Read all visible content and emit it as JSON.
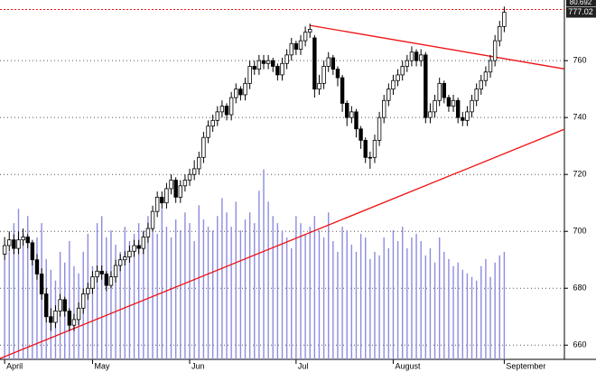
{
  "chart_data": {
    "type": "candlestick",
    "ylim": [
      655,
      781
    ],
    "yticks": [
      660,
      680,
      700,
      720,
      740,
      760
    ],
    "xlim": [
      -1,
      121
    ],
    "month_ticks": [
      {
        "value": 0,
        "label": "April"
      },
      {
        "value": 19,
        "label": "May"
      },
      {
        "value": 40,
        "label": "Jun"
      },
      {
        "value": 63,
        "label": "Jul"
      },
      {
        "value": 84,
        "label": "August"
      },
      {
        "value": 108,
        "label": "September"
      }
    ],
    "grid": true,
    "up_color": "#ffffff",
    "down_color": "#000000",
    "volume_color": "#8c8ce0",
    "trend_color": "#ee1111",
    "last_price": {
      "value": 777.02,
      "label": "777.02"
    },
    "top_label": "80.692",
    "ref_line": 778,
    "volume_lim": [
      0,
      100
    ],
    "trendlines": [
      {
        "x": [
          -1,
          121
        ],
        "values": [
          655.3,
          735.9
        ]
      },
      {
        "x": [
          66,
          121
        ],
        "values": [
          772.4,
          757.1
        ]
      }
    ],
    "open": [
      692,
      695,
      697,
      694,
      697,
      698,
      696,
      690,
      685,
      678,
      670,
      668,
      672,
      676,
      672,
      667,
      669,
      673,
      678,
      680,
      684,
      686,
      685,
      681,
      684,
      688,
      690,
      691,
      693,
      695,
      694,
      698,
      701,
      707,
      712,
      710,
      715,
      718,
      712,
      716,
      718,
      720,
      722,
      726,
      733,
      737,
      739,
      742,
      744,
      741,
      747,
      750,
      748,
      752,
      758,
      757,
      760,
      759,
      760,
      758,
      755,
      759,
      762,
      766,
      764,
      767,
      770,
      768,
      750,
      752,
      758,
      761,
      757,
      754,
      745,
      740,
      742,
      736,
      732,
      726,
      726,
      732,
      740,
      746,
      750,
      753,
      755,
      758,
      760,
      763,
      760,
      762,
      740,
      742,
      746,
      752,
      747,
      744,
      746,
      740,
      739,
      742,
      746,
      750,
      753,
      756,
      760,
      767,
      772
    ],
    "high": [
      698,
      700,
      699,
      700,
      701,
      699,
      697,
      692,
      687,
      680,
      673,
      674,
      678,
      677,
      673,
      671,
      675,
      680,
      682,
      686,
      688,
      688,
      686,
      686,
      690,
      692,
      693,
      695,
      697,
      697,
      700,
      703,
      709,
      714,
      714,
      717,
      720,
      719,
      718,
      720,
      722,
      725,
      728,
      735,
      739,
      741,
      744,
      746,
      745,
      749,
      752,
      751,
      754,
      760,
      760,
      762,
      762,
      762,
      761,
      759,
      761,
      764,
      768,
      767,
      769,
      772,
      773,
      769,
      755,
      760,
      763,
      762,
      758,
      755,
      746,
      744,
      743,
      737,
      733,
      728,
      734,
      742,
      748,
      752,
      755,
      757,
      760,
      762,
      765,
      764,
      764,
      763,
      745,
      748,
      754,
      753,
      748,
      748,
      747,
      742,
      744,
      748,
      752,
      755,
      758,
      762,
      769,
      774,
      779
    ],
    "low": [
      690,
      693,
      692,
      692,
      695,
      694,
      688,
      683,
      676,
      668,
      665,
      666,
      670,
      670,
      665,
      665,
      667,
      671,
      676,
      678,
      682,
      683,
      679,
      680,
      682,
      686,
      688,
      689,
      691,
      692,
      692,
      696,
      700,
      705,
      708,
      708,
      713,
      710,
      710,
      714,
      716,
      718,
      720,
      724,
      731,
      735,
      737,
      740,
      739,
      739,
      745,
      746,
      746,
      750,
      755,
      755,
      757,
      757,
      756,
      753,
      753,
      757,
      760,
      762,
      762,
      765,
      768,
      747,
      748,
      750,
      756,
      755,
      751,
      742,
      737,
      738,
      733,
      729,
      724,
      722,
      724,
      730,
      738,
      744,
      748,
      751,
      753,
      756,
      758,
      758,
      758,
      738,
      738,
      740,
      744,
      745,
      742,
      742,
      738,
      737,
      737,
      740,
      744,
      748,
      751,
      754,
      758,
      765,
      770
    ],
    "close": [
      695,
      697,
      694,
      697,
      698,
      696,
      690,
      685,
      678,
      670,
      668,
      672,
      676,
      672,
      667,
      669,
      673,
      678,
      680,
      684,
      686,
      685,
      681,
      684,
      688,
      690,
      691,
      693,
      695,
      694,
      698,
      701,
      707,
      712,
      710,
      715,
      718,
      712,
      716,
      718,
      720,
      722,
      726,
      733,
      737,
      739,
      742,
      744,
      741,
      747,
      750,
      748,
      752,
      758,
      757,
      760,
      759,
      760,
      758,
      755,
      759,
      762,
      766,
      764,
      767,
      770,
      771,
      750,
      752,
      758,
      761,
      757,
      754,
      745,
      740,
      742,
      736,
      732,
      726,
      726,
      732,
      740,
      746,
      750,
      753,
      755,
      758,
      760,
      763,
      760,
      762,
      740,
      742,
      746,
      752,
      747,
      744,
      746,
      740,
      739,
      742,
      746,
      750,
      753,
      756,
      760,
      767,
      772,
      777
    ],
    "volume": [
      28,
      30,
      38,
      42,
      35,
      40,
      30,
      34,
      38,
      28,
      25,
      22,
      30,
      27,
      33,
      26,
      24,
      30,
      35,
      26,
      38,
      40,
      34,
      36,
      32,
      30,
      37,
      33,
      35,
      38,
      36,
      40,
      38,
      35,
      42,
      37,
      34,
      39,
      36,
      41,
      38,
      33,
      43,
      39,
      37,
      36,
      40,
      45,
      41,
      37,
      44,
      36,
      39,
      41,
      38,
      47,
      53,
      44,
      40,
      38,
      36,
      34,
      31,
      40,
      38,
      35,
      37,
      40,
      36,
      34,
      41,
      33,
      30,
      37,
      36,
      32,
      30,
      35,
      34,
      28,
      30,
      29,
      34,
      31,
      36,
      33,
      37,
      31,
      34,
      35,
      33,
      29,
      31,
      27,
      34,
      30,
      28,
      26,
      27,
      25,
      24,
      23,
      22,
      26,
      28,
      23,
      27,
      29,
      30
    ]
  }
}
